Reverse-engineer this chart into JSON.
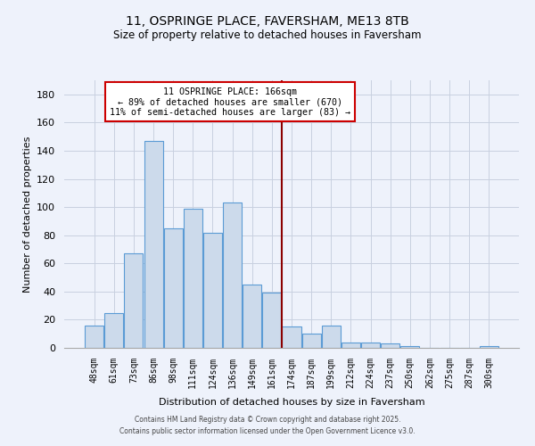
{
  "title": "11, OSPRINGE PLACE, FAVERSHAM, ME13 8TB",
  "subtitle": "Size of property relative to detached houses in Faversham",
  "xlabel": "Distribution of detached houses by size in Faversham",
  "ylabel": "Number of detached properties",
  "bar_labels": [
    "48sqm",
    "61sqm",
    "73sqm",
    "86sqm",
    "98sqm",
    "111sqm",
    "124sqm",
    "136sqm",
    "149sqm",
    "161sqm",
    "174sqm",
    "187sqm",
    "199sqm",
    "212sqm",
    "224sqm",
    "237sqm",
    "250sqm",
    "262sqm",
    "275sqm",
    "287sqm",
    "300sqm"
  ],
  "bar_values": [
    16,
    25,
    67,
    147,
    85,
    99,
    82,
    103,
    45,
    39,
    15,
    10,
    16,
    4,
    4,
    3,
    1,
    0,
    0,
    0,
    1
  ],
  "bar_color": "#ccdaeb",
  "bar_edge_color": "#5b9bd5",
  "ylim": [
    0,
    190
  ],
  "yticks": [
    0,
    20,
    40,
    60,
    80,
    100,
    120,
    140,
    160,
    180
  ],
  "vline_color": "#8b0000",
  "annotation_title": "11 OSPRINGE PLACE: 166sqm",
  "annotation_line1": "← 89% of detached houses are smaller (670)",
  "annotation_line2": "11% of semi-detached houses are larger (83) →",
  "bg_color": "#eef2fb",
  "grid_color": "#c8d0e0",
  "footer1": "Contains HM Land Registry data © Crown copyright and database right 2025.",
  "footer2": "Contains public sector information licensed under the Open Government Licence v3.0."
}
